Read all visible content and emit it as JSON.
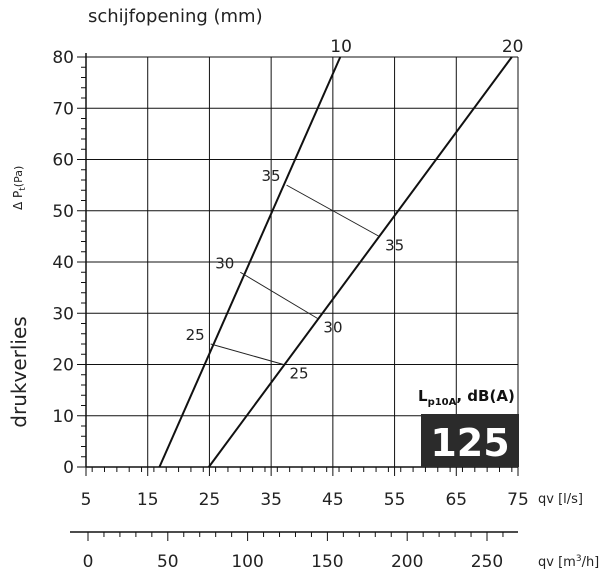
{
  "chart_data": {
    "type": "line",
    "title": "schijfopening (mm)",
    "ylabel_main": "drukverlies",
    "ylabel_symbol": "Δ P",
    "ylabel_sub": "t",
    "ylabel_unit": "(Pa)",
    "ylim": [
      0,
      80
    ],
    "y_ticks": [
      "0",
      "10",
      "20",
      "30",
      "40",
      "50",
      "60",
      "70",
      "80"
    ],
    "xlim": [
      5,
      75
    ],
    "x_ticks_ls": [
      "5",
      "15",
      "25",
      "35",
      "45",
      "55",
      "65",
      "75"
    ],
    "x_label_ls": "qv [l/s]",
    "x_ticks_m3h": [
      "0",
      "50",
      "100",
      "150",
      "200",
      "250"
    ],
    "x_label_m3h_prefix": "qv [m",
    "x_label_m3h_sup": "3",
    "x_label_m3h_suffix": "/h]",
    "grid": true,
    "series": [
      {
        "name": "10",
        "points": [
          [
            16.9,
            0
          ],
          [
            46.2,
            80
          ]
        ]
      },
      {
        "name": "20",
        "points": [
          [
            24.9,
            0
          ],
          [
            74.0,
            80
          ]
        ]
      }
    ],
    "noise_lines": [
      {
        "left_label": "25",
        "right_label": "25",
        "from": [
          25.2,
          24
        ],
        "to": [
          37.0,
          20
        ]
      },
      {
        "left_label": "30",
        "right_label": "30",
        "from": [
          30.0,
          38
        ],
        "to": [
          42.5,
          29
        ]
      },
      {
        "left_label": "35",
        "right_label": "35",
        "from": [
          37.5,
          55
        ],
        "to": [
          52.5,
          45
        ]
      }
    ],
    "badge": {
      "label_main": "L",
      "label_sub": "p10A",
      "label_suffix": ", dB(A)",
      "value": "125",
      "bg_color": "#2b2b2b",
      "text_color": "#ffffff"
    }
  }
}
